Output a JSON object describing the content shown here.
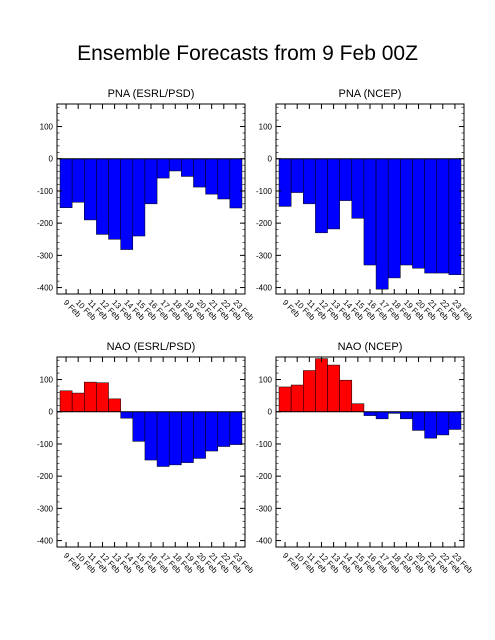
{
  "page": {
    "title": "Ensemble Forecasts from 9 Feb 00Z"
  },
  "colors": {
    "positive": "#ff0000",
    "negative": "#0000ff",
    "outline": "#000000"
  },
  "chart_data": [
    {
      "type": "bar",
      "title": "PNA (ESRL/PSD)",
      "categories": [
        "9 Feb",
        "10 Feb",
        "11 Feb",
        "12 Feb",
        "13 Feb",
        "14 Feb",
        "15 Feb",
        "16 Feb",
        "17 Feb",
        "18 Feb",
        "19 Feb",
        "20 Feb",
        "21 Feb",
        "22 Feb",
        "23 Feb"
      ],
      "values": [
        -152,
        -135,
        -190,
        -235,
        -250,
        -282,
        -240,
        -140,
        -60,
        -38,
        -55,
        -88,
        -110,
        -125,
        -153
      ],
      "ylim": [
        -420,
        170
      ],
      "yticks": [
        -400,
        -300,
        -200,
        -100,
        0,
        100
      ]
    },
    {
      "type": "bar",
      "title": "PNA (NCEP)",
      "categories": [
        "9 Feb",
        "10 Feb",
        "11 Feb",
        "12 Feb",
        "13 Feb",
        "14 Feb",
        "15 Feb",
        "16 Feb",
        "17 Feb",
        "18 Feb",
        "19 Feb",
        "20 Feb",
        "21 Feb",
        "22 Feb",
        "23 Feb"
      ],
      "values": [
        -148,
        -105,
        -140,
        -230,
        -218,
        -130,
        -185,
        -330,
        -405,
        -370,
        -330,
        -340,
        -355,
        -355,
        -360
      ],
      "ylim": [
        -420,
        170
      ],
      "yticks": [
        -400,
        -300,
        -200,
        -100,
        0,
        100
      ]
    },
    {
      "type": "bar",
      "title": "NAO (ESRL/PSD)",
      "categories": [
        "9 Feb",
        "10 Feb",
        "11 Feb",
        "12 Feb",
        "13 Feb",
        "14 Feb",
        "15 Feb",
        "16 Feb",
        "17 Feb",
        "18 Feb",
        "19 Feb",
        "20 Feb",
        "21 Feb",
        "22 Feb",
        "23 Feb"
      ],
      "values": [
        65,
        58,
        92,
        90,
        40,
        -20,
        -92,
        -150,
        -170,
        -165,
        -158,
        -145,
        -122,
        -108,
        -102
      ],
      "ylim": [
        -420,
        170
      ],
      "yticks": [
        -400,
        -300,
        -200,
        -100,
        0,
        100
      ]
    },
    {
      "type": "bar",
      "title": "NAO (NCEP)",
      "categories": [
        "9 Feb",
        "10 Feb",
        "11 Feb",
        "12 Feb",
        "13 Feb",
        "14 Feb",
        "15 Feb",
        "16 Feb",
        "17 Feb",
        "18 Feb",
        "19 Feb",
        "20 Feb",
        "21 Feb",
        "22 Feb",
        "23 Feb"
      ],
      "values": [
        77,
        83,
        128,
        165,
        145,
        98,
        25,
        -12,
        -22,
        -5,
        -22,
        -58,
        -82,
        -72,
        -55
      ],
      "ylim": [
        -420,
        170
      ],
      "yticks": [
        -400,
        -300,
        -200,
        -100,
        0,
        100
      ]
    }
  ]
}
